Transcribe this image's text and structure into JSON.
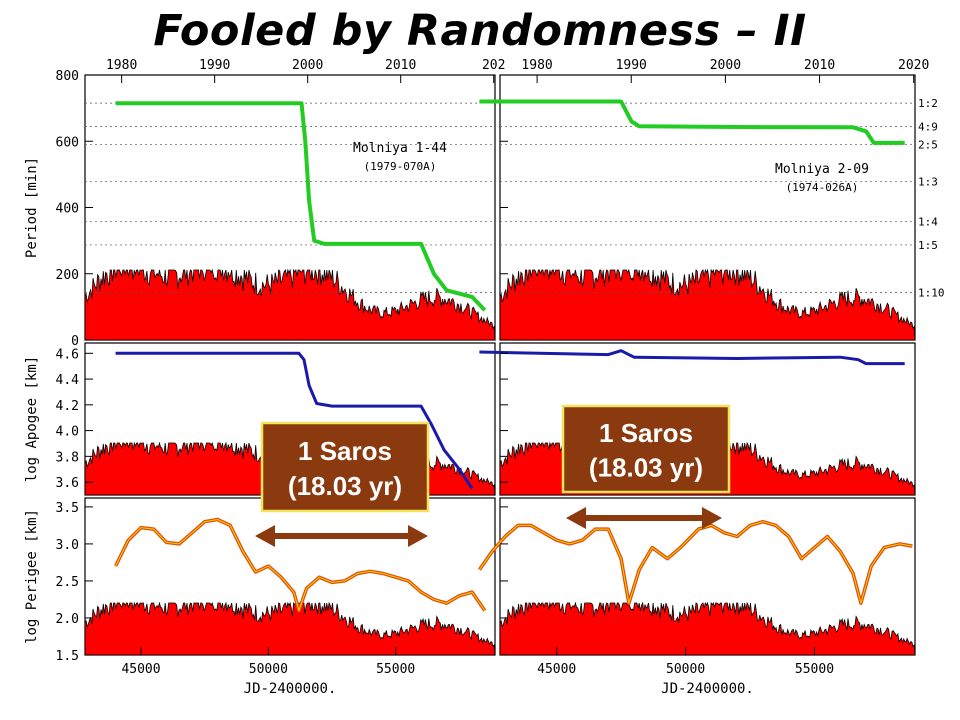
{
  "title": "Fooled by Randomness – II",
  "colors": {
    "period": "#22cc22",
    "apogee": "#1a1aaa",
    "perigee": "#e05010",
    "solar": "#ff0000",
    "saros_box": "#8B3A0F",
    "saros_border": "#f1e35a",
    "arrow": "#8B3A0F"
  },
  "chart_data": [
    {
      "type": "line",
      "panel": "top-left",
      "ylabel": "Period [min]",
      "ylim": [
        0,
        800
      ],
      "yticks": [
        "0",
        "200",
        "400",
        "600",
        "800"
      ],
      "top_xticks": [
        "1980",
        "1990",
        "2000",
        "2010",
        "202"
      ],
      "annotation": [
        "Molniya 1-44",
        "(1979-070A)"
      ],
      "x": [
        44000,
        51300,
        51450,
        51600,
        51800,
        52200,
        56000,
        56500,
        57000,
        58000,
        58500
      ],
      "y": [
        715,
        715,
        600,
        420,
        300,
        290,
        290,
        200,
        150,
        130,
        90
      ]
    },
    {
      "type": "line",
      "panel": "top-right",
      "resonances": [
        "1:2",
        "4:9",
        "2:5",
        "1:3",
        "1:4",
        "1:5",
        "1:10"
      ],
      "top_xticks": [
        "1980",
        "1990",
        "2000",
        "2010",
        "2020"
      ],
      "annotation": [
        "Molniya 2-09",
        "(1974-026A)"
      ],
      "x": [
        42000,
        47500,
        47900,
        48200,
        52000,
        56500,
        57000,
        57300,
        58500
      ],
      "y": [
        720,
        720,
        660,
        645,
        643,
        642,
        630,
        595,
        595
      ]
    },
    {
      "type": "line",
      "panel": "middle-left",
      "ylabel": "log Apogee [km]",
      "ylim": [
        3.5,
        4.7
      ],
      "yticks": [
        "3.6",
        "3.8",
        "4.0",
        "4.2",
        "4.4",
        "4.6"
      ],
      "x": [
        44000,
        51200,
        51400,
        51600,
        51900,
        52500,
        56000,
        56400,
        56900,
        57500,
        58000
      ],
      "y": [
        4.6,
        4.6,
        4.55,
        4.35,
        4.21,
        4.19,
        4.19,
        4.05,
        3.85,
        3.7,
        3.55
      ]
    },
    {
      "type": "line",
      "panel": "middle-right",
      "x": [
        42000,
        47000,
        47500,
        48000,
        52000,
        56000,
        56700,
        57000,
        58500
      ],
      "y": [
        4.61,
        4.59,
        4.62,
        4.57,
        4.56,
        4.57,
        4.55,
        4.52,
        4.52
      ]
    },
    {
      "type": "line",
      "panel": "bottom-left",
      "ylabel": "log Perigee [km]",
      "xlabel": "JD-2400000.",
      "ylim": [
        1.5,
        3.6
      ],
      "yticks": [
        "1.5",
        "2.0",
        "2.5",
        "3.0",
        "3.5"
      ],
      "xticks": [
        "45000",
        "50000",
        "55000"
      ],
      "x": [
        44000,
        44500,
        45000,
        45500,
        46000,
        46500,
        47000,
        47500,
        48000,
        48500,
        49000,
        49500,
        50000,
        50500,
        51000,
        51200,
        51500,
        52000,
        52500,
        53000,
        53500,
        54000,
        54500,
        55000,
        55500,
        56000,
        56500,
        57000,
        57500,
        58000,
        58500
      ],
      "y": [
        2.7,
        3.05,
        3.22,
        3.2,
        3.02,
        3.0,
        3.15,
        3.3,
        3.33,
        3.25,
        2.9,
        2.62,
        2.7,
        2.55,
        2.35,
        2.1,
        2.4,
        2.55,
        2.48,
        2.5,
        2.6,
        2.63,
        2.6,
        2.55,
        2.5,
        2.35,
        2.25,
        2.2,
        2.3,
        2.35,
        2.1
      ]
    },
    {
      "type": "line",
      "panel": "bottom-right",
      "xlabel": "JD-2400000.",
      "xticks": [
        "45000",
        "50000",
        "55000"
      ],
      "x": [
        42000,
        42500,
        43000,
        43500,
        44000,
        44500,
        45000,
        45500,
        46000,
        46500,
        47000,
        47500,
        47800,
        48200,
        48700,
        49300,
        49800,
        50500,
        51000,
        51500,
        52000,
        52500,
        53000,
        53500,
        54000,
        54500,
        55000,
        55500,
        56000,
        56500,
        56800,
        57200,
        57700,
        58300,
        58800
      ],
      "y": [
        2.65,
        2.9,
        3.1,
        3.25,
        3.25,
        3.15,
        3.05,
        3.0,
        3.05,
        3.2,
        3.2,
        2.8,
        2.2,
        2.65,
        2.95,
        2.8,
        2.95,
        3.2,
        3.25,
        3.15,
        3.1,
        3.25,
        3.3,
        3.25,
        3.1,
        2.8,
        2.95,
        3.1,
        2.9,
        2.6,
        2.2,
        2.7,
        2.95,
        3.0,
        2.97
      ]
    }
  ],
  "saros": {
    "line1": "1 Saros",
    "line2": "(18.03 yr)"
  }
}
